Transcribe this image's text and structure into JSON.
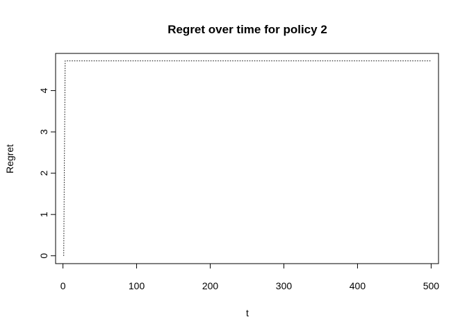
{
  "chart_data": {
    "type": "line",
    "title": "Regret over time for policy 2",
    "xlabel": "t",
    "ylabel": "Regret",
    "xlim": [
      -10,
      510
    ],
    "ylim": [
      -0.19,
      4.9
    ],
    "xticks": [
      0,
      100,
      200,
      300,
      400,
      500
    ],
    "yticks": [
      0,
      1,
      2,
      3,
      4
    ],
    "grid": false,
    "legend": "none",
    "line_style": "dotted",
    "line_color": "#000000",
    "series": [
      {
        "name": "regret",
        "x": [
          1,
          2,
          3,
          500
        ],
        "y": [
          0,
          2.4,
          4.72,
          4.72
        ]
      }
    ]
  }
}
